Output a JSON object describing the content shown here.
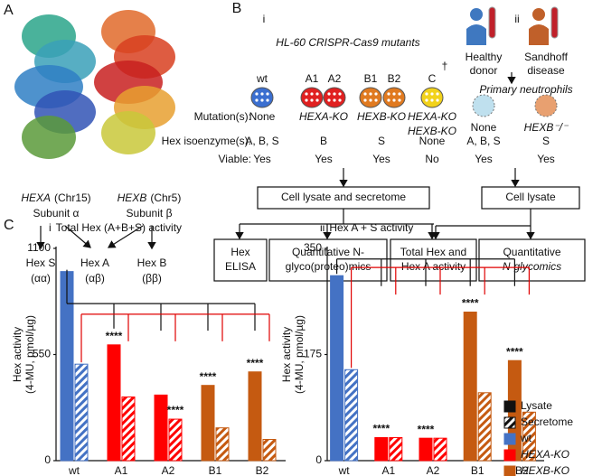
{
  "panel_a": {
    "label": "A",
    "genes": [
      {
        "gene": "HEXA",
        "chromosome": "(Chr15)",
        "subunit": "Subunit α"
      },
      {
        "gene": "HEXB",
        "chromosome": "(Chr5)",
        "subunit": "Subunit β"
      }
    ],
    "isoenzymes": [
      {
        "name": "Hex S",
        "subunits": "(αα)"
      },
      {
        "name": "Hex A",
        "subunits": "(αβ)"
      },
      {
        "name": "Hex B",
        "subunits": "(ββ)"
      }
    ]
  },
  "panel_b": {
    "label": "B",
    "part_i": "i",
    "part_ii": "ii",
    "title": "HL-60 CRISPR-Cas9 mutants",
    "row_labels": [
      "Mutation(s):",
      "Hex isoenzyme(s):",
      "Viable:"
    ],
    "lines": [
      {
        "names": [
          "wt"
        ],
        "colors": [
          "#3b6fd0"
        ],
        "mutation": [
          "None"
        ],
        "isoenzymes": "A, B, S",
        "viable": "Yes"
      },
      {
        "names": [
          "A1",
          "A2"
        ],
        "colors": [
          "#e02020",
          "#e02020"
        ],
        "mutation": [
          "HEXA-KO"
        ],
        "isoenzymes": "B",
        "viable": "Yes"
      },
      {
        "names": [
          "B1",
          "B2"
        ],
        "colors": [
          "#e07a20",
          "#e07a20"
        ],
        "mutation": [
          "HEXB-KO"
        ],
        "isoenzymes": "S",
        "viable": "Yes"
      },
      {
        "names": [
          "C"
        ],
        "colors": [
          "#f2d21b"
        ],
        "mark": "†",
        "mutation": [
          "HEXA-KO",
          "HEXB-KO"
        ],
        "isoenzymes": "None",
        "viable": "No"
      }
    ],
    "donors": [
      {
        "name": [
          "Healthy",
          "donor"
        ],
        "color": "#3f78c0",
        "mutation": [
          "None"
        ],
        "isoenzymes": "A, B, S",
        "viable": "Yes"
      },
      {
        "name": [
          "Sandhoff",
          "disease"
        ],
        "color": "#c0602a",
        "mutation": [
          "HEXB⁻/⁻"
        ],
        "isoenzymes": "S",
        "viable": "Yes"
      }
    ],
    "cells": "Primary neutrophils",
    "samples": [
      "Cell lysate and secretome",
      "Cell lysate"
    ],
    "analyses": [
      [
        "Hex",
        "ELISA"
      ],
      [
        "Quantitative N-",
        "glyco(proteo)mics"
      ],
      [
        "Total Hex and",
        "Hex A activity"
      ],
      [
        "Quantitative",
        "N-glycomics"
      ]
    ]
  },
  "panel_c": {
    "label": "C"
  },
  "legend": [
    {
      "name": "Lysate",
      "style": "solid"
    },
    {
      "name": "Secretome",
      "style": "hatched"
    },
    {
      "name": "wt",
      "color": "#4472c4"
    },
    {
      "name": "HEXA-KO",
      "color": "#ff0000"
    },
    {
      "name": "HEXB-KO",
      "color": "#c55a11"
    }
  ],
  "chart_data": [
    {
      "type": "bar",
      "number": "i",
      "title": "Total Hex (A+B+S) activity",
      "y_label": [
        "Hex activity",
        "(4-MU, pmol/µg)"
      ],
      "categories": [
        "wt",
        "A1",
        "A2",
        "B1",
        "B2"
      ],
      "category_colors": [
        "#4472c4",
        "#ff0000",
        "#ff0000",
        "#c55a11",
        "#c55a11"
      ],
      "ylim": [
        0,
        1100
      ],
      "yticks": [
        0,
        550,
        1100
      ],
      "series": [
        {
          "style": "solid",
          "values": [
            980,
            600,
            340,
            390,
            460
          ],
          "annotations": [
            null,
            "****",
            null,
            "****",
            "****"
          ]
        },
        {
          "style": "hatched",
          "values": [
            500,
            330,
            215,
            170,
            110
          ],
          "annotations": [
            null,
            null,
            "****",
            null,
            null
          ]
        }
      ]
    },
    {
      "type": "bar",
      "number": "ii",
      "title": "Hex A + S activity",
      "y_label": [
        "Hex activity",
        "(4-MU, pmol/µg)"
      ],
      "categories": [
        "wt",
        "A1",
        "A2",
        "B1",
        "B2"
      ],
      "category_colors": [
        "#4472c4",
        "#ff0000",
        "#ff0000",
        "#c55a11",
        "#c55a11"
      ],
      "ylim": [
        0,
        350
      ],
      "yticks": [
        0,
        175,
        350
      ],
      "series": [
        {
          "style": "solid",
          "values": [
            305,
            38,
            37,
            245,
            165
          ],
          "annotations": [
            null,
            "****",
            "****",
            "****",
            "****"
          ]
        },
        {
          "style": "hatched",
          "values": [
            150,
            38,
            37,
            112,
            80
          ],
          "annotations": [
            null,
            null,
            null,
            null,
            null
          ]
        }
      ]
    }
  ]
}
